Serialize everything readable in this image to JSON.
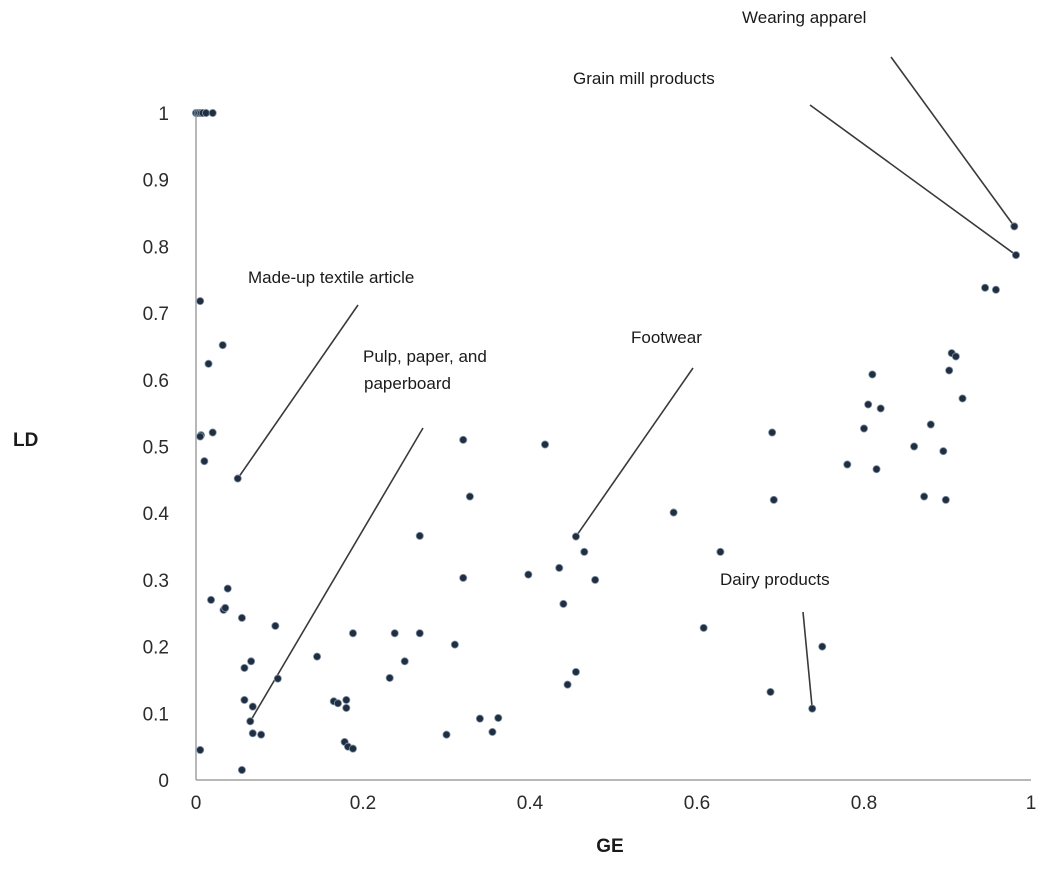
{
  "chart_data": {
    "type": "scatter",
    "title": "",
    "xlabel": "GE",
    "ylabel": "LD",
    "xlim": [
      0,
      1
    ],
    "ylim": [
      0,
      1
    ],
    "xticks": [
      "0",
      "0.2",
      "0.4",
      "0.6",
      "0.8",
      "1"
    ],
    "yticks": [
      "0",
      "0.1",
      "0.2",
      "0.3",
      "0.4",
      "0.5",
      "0.6",
      "0.7",
      "0.8",
      "0.9",
      "1"
    ],
    "grid": false,
    "points": [
      [
        0.0,
        1.0
      ],
      [
        0.002,
        1.0
      ],
      [
        0.004,
        1.0
      ],
      [
        0.006,
        1.0
      ],
      [
        0.008,
        1.0
      ],
      [
        0.012,
        1.0
      ],
      [
        0.02,
        1.0
      ],
      [
        0.005,
        0.718
      ],
      [
        0.032,
        0.652
      ],
      [
        0.015,
        0.624
      ],
      [
        0.02,
        0.521
      ],
      [
        0.006,
        0.517
      ],
      [
        0.005,
        0.515
      ],
      [
        0.01,
        0.478
      ],
      [
        0.05,
        0.452
      ],
      [
        0.038,
        0.287
      ],
      [
        0.018,
        0.27
      ],
      [
        0.033,
        0.255
      ],
      [
        0.035,
        0.258
      ],
      [
        0.055,
        0.243
      ],
      [
        0.095,
        0.231
      ],
      [
        0.058,
        0.168
      ],
      [
        0.066,
        0.178
      ],
      [
        0.098,
        0.152
      ],
      [
        0.058,
        0.12
      ],
      [
        0.068,
        0.11
      ],
      [
        0.065,
        0.088
      ],
      [
        0.068,
        0.07
      ],
      [
        0.078,
        0.068
      ],
      [
        0.055,
        0.015
      ],
      [
        0.005,
        0.045
      ],
      [
        0.145,
        0.185
      ],
      [
        0.165,
        0.118
      ],
      [
        0.17,
        0.115
      ],
      [
        0.18,
        0.12
      ],
      [
        0.18,
        0.108
      ],
      [
        0.178,
        0.057
      ],
      [
        0.182,
        0.05
      ],
      [
        0.188,
        0.047
      ],
      [
        0.188,
        0.22
      ],
      [
        0.232,
        0.153
      ],
      [
        0.238,
        0.22
      ],
      [
        0.25,
        0.178
      ],
      [
        0.268,
        0.22
      ],
      [
        0.268,
        0.366
      ],
      [
        0.3,
        0.068
      ],
      [
        0.31,
        0.203
      ],
      [
        0.32,
        0.51
      ],
      [
        0.32,
        0.303
      ],
      [
        0.328,
        0.425
      ],
      [
        0.34,
        0.092
      ],
      [
        0.355,
        0.072
      ],
      [
        0.362,
        0.093
      ],
      [
        0.398,
        0.308
      ],
      [
        0.418,
        0.503
      ],
      [
        0.435,
        0.318
      ],
      [
        0.44,
        0.264
      ],
      [
        0.445,
        0.143
      ],
      [
        0.455,
        0.365
      ],
      [
        0.455,
        0.162
      ],
      [
        0.465,
        0.342
      ],
      [
        0.478,
        0.3
      ],
      [
        0.572,
        0.401
      ],
      [
        0.608,
        0.228
      ],
      [
        0.628,
        0.342
      ],
      [
        0.688,
        0.132
      ],
      [
        0.69,
        0.521
      ],
      [
        0.692,
        0.42
      ],
      [
        0.738,
        0.107
      ],
      [
        0.75,
        0.2
      ],
      [
        0.78,
        0.473
      ],
      [
        0.8,
        0.527
      ],
      [
        0.805,
        0.563
      ],
      [
        0.81,
        0.608
      ],
      [
        0.815,
        0.466
      ],
      [
        0.82,
        0.557
      ],
      [
        0.86,
        0.5
      ],
      [
        0.872,
        0.425
      ],
      [
        0.88,
        0.533
      ],
      [
        0.895,
        0.493
      ],
      [
        0.898,
        0.42
      ],
      [
        0.902,
        0.614
      ],
      [
        0.905,
        0.64
      ],
      [
        0.91,
        0.635
      ],
      [
        0.918,
        0.572
      ],
      [
        0.945,
        0.738
      ],
      [
        0.958,
        0.735
      ],
      [
        0.98,
        0.83
      ],
      [
        0.982,
        0.787
      ]
    ],
    "annotations": [
      {
        "text": "Wearing apparel",
        "point": [
          0.98,
          0.83
        ]
      },
      {
        "text": "Grain mill products",
        "point": [
          0.982,
          0.787
        ]
      },
      {
        "text": "Made-up textile article",
        "point": [
          0.05,
          0.452
        ]
      },
      {
        "text": "Pulp, paper, and",
        "point": [
          0.065,
          0.088
        ]
      },
      {
        "text": "paperboard",
        "point": [
          0.065,
          0.088
        ]
      },
      {
        "text": "Footwear",
        "point": [
          0.455,
          0.365
        ]
      },
      {
        "text": "Dairy products",
        "point": [
          0.738,
          0.107
        ]
      }
    ]
  }
}
